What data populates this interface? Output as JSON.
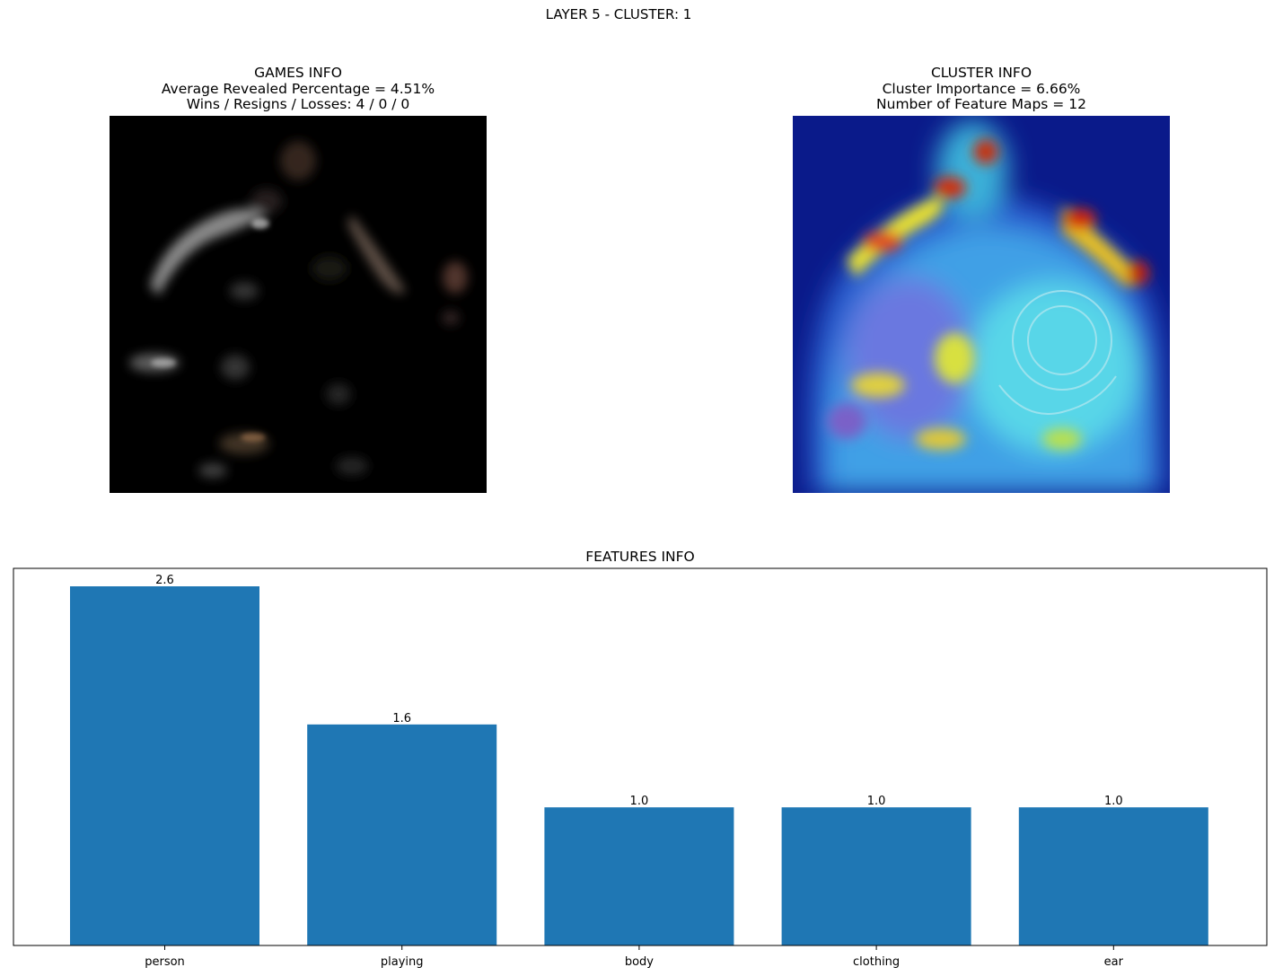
{
  "suptitle": "LAYER 5 - CLUSTER: 1",
  "games_info": {
    "title": "GAMES INFO",
    "avg_revealed": "Average Revealed Percentage = 4.51%",
    "record": "Wins / Resigns / Losses: 4 / 0 / 0"
  },
  "cluster_info": {
    "title": "CLUSTER INFO",
    "importance": "Cluster Importance = 6.66%",
    "feature_maps": "Number of Feature Maps = 12"
  },
  "chart_data": {
    "type": "bar",
    "title": "FEATURES INFO",
    "categories": [
      "person",
      "playing",
      "body",
      "clothing",
      "ear"
    ],
    "values": [
      2.6,
      1.6,
      1.0,
      1.0,
      1.0
    ],
    "value_labels": [
      "2.6",
      "1.6",
      "1.0",
      "1.0",
      "1.0"
    ],
    "ylim": [
      0,
      2.73
    ],
    "bar_color": "#1f77b4",
    "grid": false
  }
}
